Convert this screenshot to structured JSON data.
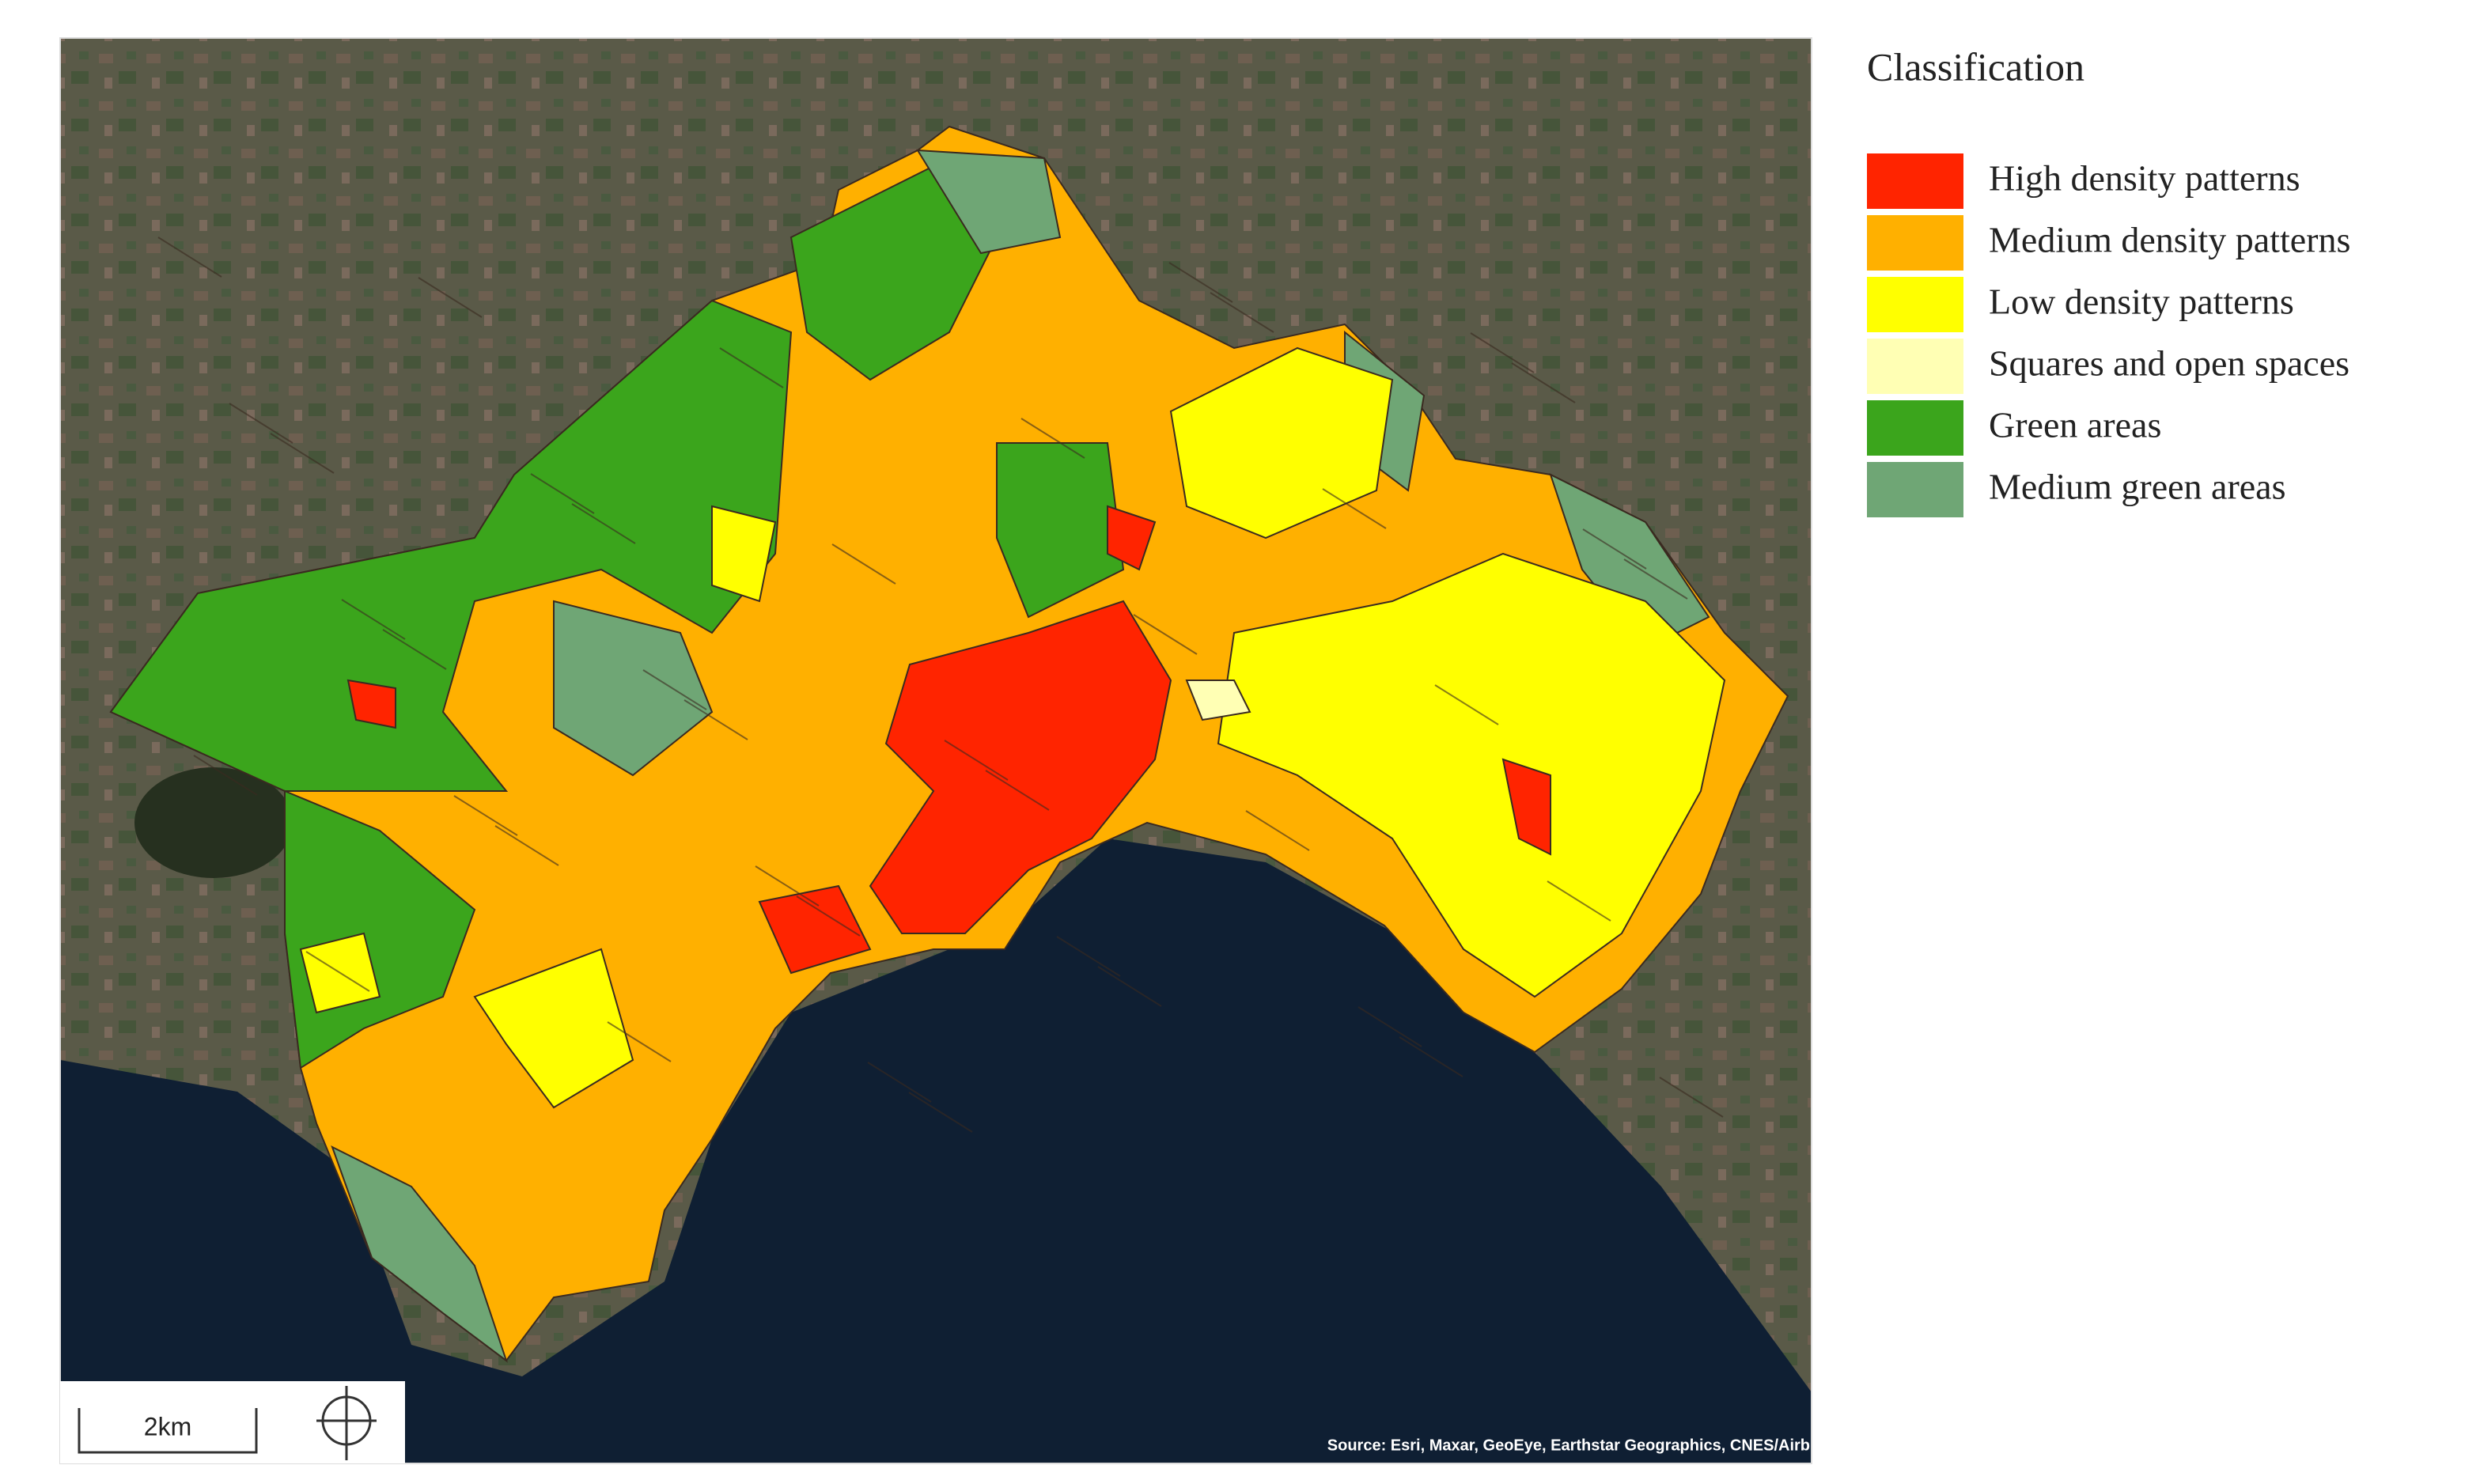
{
  "legend": {
    "title": "Classification",
    "items": [
      {
        "label": "High density patterns",
        "color": "#ff2400"
      },
      {
        "label": "Medium density patterns",
        "color": "#ffb000"
      },
      {
        "label": "Low density patterns",
        "color": "#ffff00"
      },
      {
        "label": "Squares and open spaces",
        "color": "#ffffb4"
      },
      {
        "label": "Green areas",
        "color": "#3ba51c"
      },
      {
        "label": "Medium green areas",
        "color": "#6fa675"
      }
    ]
  },
  "scale_bar": {
    "label": "2km"
  },
  "attribution": "Source: Esri, Maxar, GeoEye, Earthstar Geographics, CNES/Airb"
}
